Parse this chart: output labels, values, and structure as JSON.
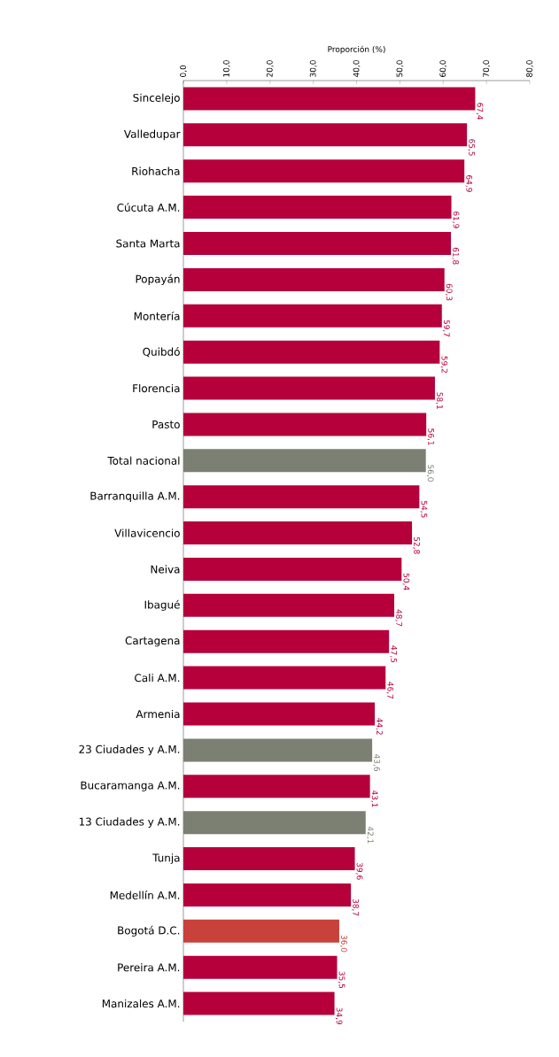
{
  "chart_data": {
    "type": "bar",
    "orientation": "horizontal",
    "xlabel": "Proporción (%)",
    "categories": [
      "Sincelejo",
      "Valledupar",
      "Riohacha",
      "Cúcuta A.M.",
      "Santa Marta",
      "Popayán",
      "Montería",
      "Quibdó",
      "Florencia",
      "Pasto",
      "Total nacional",
      "Barranquilla A.M.",
      "Villavicencio",
      "Neiva",
      "Ibagué",
      "Cartagena",
      "Cali A.M.",
      "Armenia",
      "23 Ciudades y A.M.",
      "Bucaramanga A.M.",
      "13 Ciudades y A.M.",
      "Tunja",
      "Medellín A.M.",
      "Bogotá D.C.",
      "Pereira A.M.",
      "Manizales A.M."
    ],
    "values": [
      67.4,
      65.5,
      64.9,
      61.9,
      61.8,
      60.3,
      59.7,
      59.2,
      58.1,
      56.1,
      56.0,
      54.5,
      52.8,
      50.4,
      48.7,
      47.5,
      46.7,
      44.2,
      43.6,
      43.1,
      42.1,
      39.6,
      38.7,
      36.0,
      35.5,
      34.9
    ],
    "value_labels": [
      "67,4",
      "65,5",
      "64,9",
      "61,9",
      "61,8",
      "60,3",
      "59,7",
      "59,2",
      "58,1",
      "56,1",
      "56,0",
      "54,5",
      "52,8",
      "50,4",
      "48,7",
      "47,5",
      "46,7",
      "44,2",
      "43,6",
      "43,1",
      "42,1",
      "39,6",
      "38,7",
      "36,0",
      "35,5",
      "34,9"
    ],
    "colors": [
      "#b5003c",
      "#b5003c",
      "#b5003c",
      "#b5003c",
      "#b5003c",
      "#b5003c",
      "#b5003c",
      "#b5003c",
      "#b5003c",
      "#b5003c",
      "#7b8073",
      "#b5003c",
      "#b5003c",
      "#b5003c",
      "#b5003c",
      "#b5003c",
      "#b5003c",
      "#b5003c",
      "#7b8073",
      "#b5003c",
      "#7b8073",
      "#b5003c",
      "#b5003c",
      "#c8413a",
      "#b5003c",
      "#b5003c"
    ],
    "xlim": [
      0,
      80
    ],
    "xticks": [
      {
        "value": 0,
        "label": "0,0"
      },
      {
        "value": 10,
        "label": "10,0"
      },
      {
        "value": 20,
        "label": "20,0"
      },
      {
        "value": 30,
        "label": "30,0"
      },
      {
        "value": 40,
        "label": "40,0"
      },
      {
        "value": 50,
        "label": "50,0"
      },
      {
        "value": 60,
        "label": "60,0"
      },
      {
        "value": 70,
        "label": "70,0"
      },
      {
        "value": 80,
        "label": "80,0"
      }
    ],
    "grid": false
  }
}
